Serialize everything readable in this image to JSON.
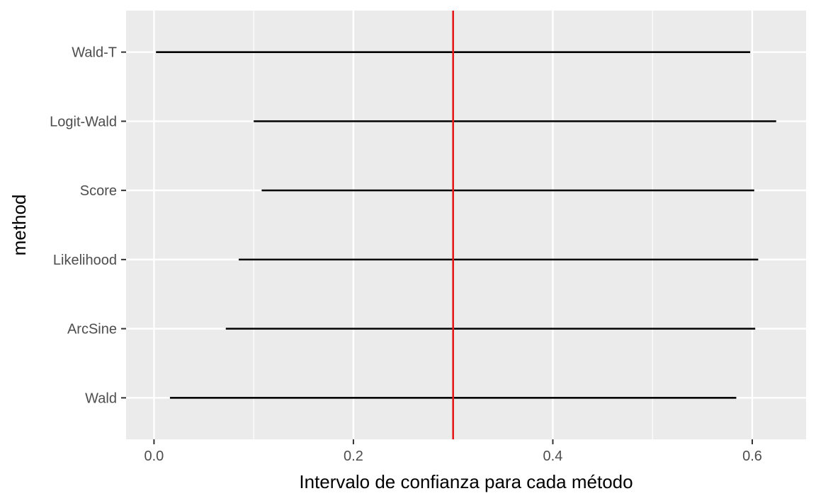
{
  "chart_data": {
    "type": "interval",
    "xlabel": "Intervalo de confianza para cada método",
    "ylabel": "method",
    "xlim": [
      -0.028,
      0.654
    ],
    "x_ticks": [
      0.0,
      0.2,
      0.4,
      0.6
    ],
    "x_tick_labels": [
      "0.0",
      "0.2",
      "0.4",
      "0.6"
    ],
    "categories": [
      "Wald",
      "ArcSine",
      "Likelihood",
      "Score",
      "Logit-Wald",
      "Wald-T"
    ],
    "intervals": [
      {
        "method": "Wald",
        "lower": 0.016,
        "upper": 0.584
      },
      {
        "method": "ArcSine",
        "lower": 0.072,
        "upper": 0.603
      },
      {
        "method": "Likelihood",
        "lower": 0.085,
        "upper": 0.606
      },
      {
        "method": "Score",
        "lower": 0.108,
        "upper": 0.602
      },
      {
        "method": "Logit-Wald",
        "lower": 0.1,
        "upper": 0.624
      },
      {
        "method": "Wald-T",
        "lower": 0.002,
        "upper": 0.598
      }
    ],
    "reference_line": {
      "x": 0.3,
      "color": "#e41a1c"
    },
    "grid": true,
    "colors": {
      "panel": "#ebebeb",
      "grid": "#ffffff",
      "interval": "#000000",
      "tick": "#333333"
    }
  }
}
